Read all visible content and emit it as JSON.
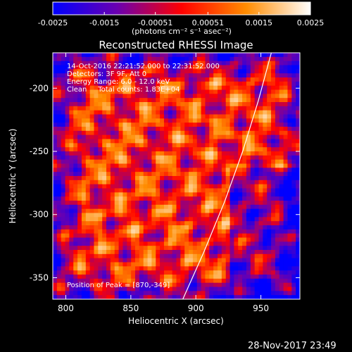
{
  "chart_data": {
    "type": "heatmap",
    "title": "Reconstructed RHESSI Image",
    "xlabel": "Heliocentric X (arcsec)",
    "ylabel": "Heliocentric Y (arcsec)",
    "xlim": [
      790,
      980
    ],
    "ylim": [
      -367,
      -172
    ],
    "x_ticks": [
      {
        "value": 800,
        "label": "800"
      },
      {
        "value": 850,
        "label": "850"
      },
      {
        "value": 900,
        "label": "900"
      },
      {
        "value": 950,
        "label": "950"
      }
    ],
    "y_ticks": [
      {
        "value": -200,
        "label": "-200"
      },
      {
        "value": -250,
        "label": "-250"
      },
      {
        "value": -300,
        "label": "-300"
      },
      {
        "value": -350,
        "label": "-350"
      }
    ],
    "colorbar": {
      "min": -0.0025,
      "max": 0.0025,
      "unit_label": "(photons cm⁻² s⁻¹ asec⁻²)",
      "ticks": [
        {
          "value": -0.0025,
          "label": "-0.0025"
        },
        {
          "value": -0.0015,
          "label": "-0.0015"
        },
        {
          "value": -0.00051,
          "label": "-0.00051"
        },
        {
          "value": 0.00051,
          "label": "0.00051"
        },
        {
          "value": 0.0015,
          "label": "0.0015"
        },
        {
          "value": 0.0025,
          "label": "0.0025"
        }
      ],
      "colors": [
        "#0000ff",
        "#6a00b0",
        "#ff0000",
        "#ff8c00",
        "#ffffff"
      ]
    },
    "info_lines": [
      "14-Oct-2016 22:21:52.000 to 22:31:52.000",
      "Detectors: 3F 9F, Att 0",
      "Energy Range: 6.0 - 12.0 keV",
      "Clean     Total counts: 1.83E+04"
    ],
    "peak_label": "Position of Peak = [870,-349]",
    "limb_curve": [
      [
        890,
        -367
      ],
      [
        906,
        -330
      ],
      [
        922,
        -290
      ],
      [
        936,
        -250
      ],
      [
        948,
        -210
      ],
      [
        958,
        -172
      ]
    ],
    "limb_color": "#ffffff"
  },
  "footer": {
    "timestamp": "28-Nov-2017 23:49"
  }
}
